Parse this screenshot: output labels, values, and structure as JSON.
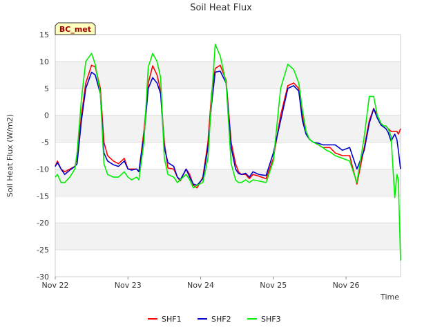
{
  "chart_data": {
    "type": "line",
    "title": "Soil Heat Flux",
    "xlabel": "Time",
    "ylabel": "Soil Heat Flux (W/m2)",
    "ylim": [
      -30,
      15
    ],
    "yticks": [
      15,
      10,
      5,
      0,
      -5,
      -10,
      -15,
      -20,
      -25,
      -30
    ],
    "xlim": [
      0,
      4.75
    ],
    "xticks": [
      {
        "value": 0,
        "label": "Nov 22"
      },
      {
        "value": 1,
        "label": "Nov 23"
      },
      {
        "value": 2,
        "label": "Nov 24"
      },
      {
        "value": 3,
        "label": "Nov 25"
      },
      {
        "value": 4,
        "label": "Nov 26"
      }
    ],
    "grid": "horizontal bands",
    "site_label": "BC_met",
    "legend_position": "bottom",
    "series": [
      {
        "name": "SHF1",
        "color": "#ff0000",
        "x": [
          0,
          0.03,
          0.08,
          0.13,
          0.2,
          0.27,
          0.3,
          0.36,
          0.42,
          0.5,
          0.55,
          0.62,
          0.67,
          0.72,
          0.8,
          0.87,
          0.95,
          1.0,
          1.05,
          1.12,
          1.15,
          1.22,
          1.28,
          1.34,
          1.4,
          1.45,
          1.5,
          1.55,
          1.63,
          1.68,
          1.72,
          1.8,
          1.85,
          1.9,
          1.95,
          2.03,
          2.1,
          2.15,
          2.2,
          2.27,
          2.35,
          2.42,
          2.48,
          2.52,
          2.56,
          2.62,
          2.67,
          2.72,
          2.8,
          2.9,
          3.0,
          3.1,
          3.2,
          3.28,
          3.35,
          3.4,
          3.45,
          3.5,
          3.55,
          3.62,
          3.68,
          3.73,
          3.78,
          3.85,
          3.95,
          4.05,
          4.15,
          4.25,
          4.32,
          4.38,
          4.43,
          4.48,
          4.52,
          4.55,
          4.58,
          4.62,
          4.67,
          4.7,
          4.72,
          4.75
        ],
        "y": [
          -9.5,
          -8.5,
          -10,
          -10.5,
          -10,
          -9.5,
          -8,
          0,
          6,
          9.3,
          9,
          5,
          -5,
          -7.5,
          -8.5,
          -9,
          -8,
          -10,
          -10,
          -10,
          -10.5,
          -3,
          6,
          9.2,
          7.5,
          4.5,
          -5,
          -9.8,
          -10,
          -11.5,
          -12.2,
          -10,
          -11,
          -13,
          -13.5,
          -11.5,
          -5,
          4,
          8.7,
          9.3,
          6.5,
          -5,
          -9,
          -10.5,
          -11,
          -11,
          -11.8,
          -11,
          -11.3,
          -11.8,
          -8,
          0,
          5.5,
          6,
          5,
          0,
          -3.5,
          -4.5,
          -5,
          -5.5,
          -6,
          -6,
          -6,
          -7,
          -7.5,
          -7.5,
          -12.8,
          -6,
          -1,
          1.3,
          0,
          -1.5,
          -2,
          -2,
          -2.5,
          -3,
          -3,
          -3,
          -3.5,
          -2.5
        ]
      },
      {
        "name": "SHF2",
        "color": "#0000cc",
        "x": [
          0,
          0.03,
          0.08,
          0.13,
          0.2,
          0.27,
          0.3,
          0.36,
          0.42,
          0.5,
          0.55,
          0.62,
          0.67,
          0.72,
          0.8,
          0.87,
          0.95,
          1.0,
          1.05,
          1.12,
          1.15,
          1.22,
          1.28,
          1.34,
          1.4,
          1.45,
          1.5,
          1.55,
          1.63,
          1.68,
          1.72,
          1.8,
          1.85,
          1.9,
          1.95,
          2.03,
          2.1,
          2.15,
          2.2,
          2.27,
          2.35,
          2.42,
          2.48,
          2.52,
          2.56,
          2.62,
          2.67,
          2.72,
          2.8,
          2.9,
          3.0,
          3.1,
          3.2,
          3.28,
          3.35,
          3.4,
          3.45,
          3.5,
          3.55,
          3.62,
          3.68,
          3.73,
          3.78,
          3.85,
          3.95,
          4.05,
          4.15,
          4.25,
          4.32,
          4.38,
          4.43,
          4.48,
          4.52,
          4.55,
          4.58,
          4.62,
          4.67,
          4.7,
          4.72,
          4.75
        ],
        "y": [
          -9.5,
          -8.8,
          -10,
          -11,
          -10.2,
          -9.5,
          -9,
          -1,
          5,
          8,
          7.5,
          4,
          -7,
          -8.5,
          -9.2,
          -9.5,
          -8.5,
          -10,
          -10.2,
          -10,
          -10.5,
          -4,
          5,
          7,
          6,
          4,
          -6,
          -8.8,
          -9.5,
          -11.5,
          -12,
          -10,
          -11.5,
          -12.8,
          -13,
          -11.8,
          -6,
          2,
          8,
          8.2,
          6,
          -6,
          -10,
          -10.8,
          -11,
          -10.8,
          -11.5,
          -10.5,
          -11,
          -11.2,
          -7,
          -1,
          5,
          5.5,
          4.5,
          -1,
          -3.5,
          -4.5,
          -5,
          -5.2,
          -5.5,
          -5.5,
          -5.5,
          -5.5,
          -6.5,
          -6,
          -10,
          -6.5,
          -1.5,
          1.2,
          -0.5,
          -1.8,
          -2.2,
          -2.5,
          -3.2,
          -4.8,
          -3.5,
          -4.5,
          -6.5,
          -10
        ]
      },
      {
        "name": "SHF3",
        "color": "#00ee00",
        "x": [
          0,
          0.03,
          0.08,
          0.13,
          0.2,
          0.27,
          0.3,
          0.36,
          0.42,
          0.5,
          0.55,
          0.62,
          0.67,
          0.72,
          0.8,
          0.87,
          0.95,
          1.0,
          1.05,
          1.12,
          1.15,
          1.22,
          1.28,
          1.34,
          1.4,
          1.45,
          1.5,
          1.55,
          1.63,
          1.68,
          1.72,
          1.8,
          1.85,
          1.9,
          1.95,
          2.03,
          2.1,
          2.15,
          2.2,
          2.27,
          2.35,
          2.42,
          2.48,
          2.52,
          2.56,
          2.62,
          2.67,
          2.72,
          2.8,
          2.9,
          3.0,
          3.1,
          3.2,
          3.28,
          3.35,
          3.4,
          3.45,
          3.5,
          3.55,
          3.62,
          3.68,
          3.73,
          3.78,
          3.85,
          3.95,
          4.05,
          4.15,
          4.25,
          4.32,
          4.38,
          4.43,
          4.48,
          4.52,
          4.55,
          4.58,
          4.62,
          4.67,
          4.7,
          4.72,
          4.75
        ],
        "y": [
          -11.5,
          -11,
          -12.5,
          -12.5,
          -11.5,
          -10,
          -7,
          3,
          10,
          11.5,
          9.5,
          4,
          -9,
          -11,
          -11.5,
          -11.5,
          -10.5,
          -11.5,
          -12,
          -11.5,
          -12,
          -5,
          9,
          11.5,
          10,
          7,
          -8,
          -11,
          -11.5,
          -12.5,
          -12,
          -11,
          -12,
          -13.5,
          -13,
          -12.5,
          -8,
          3,
          13.2,
          11,
          6,
          -9,
          -12,
          -12.5,
          -12.5,
          -12,
          -12.5,
          -12,
          -12.2,
          -12.5,
          -8.5,
          5,
          9.5,
          8.5,
          6,
          1,
          -3,
          -4.5,
          -5,
          -5.5,
          -6,
          -6.5,
          -6.8,
          -7.5,
          -8,
          -8.5,
          -12.5,
          -4,
          3.5,
          3.5,
          0,
          -1.5,
          -2,
          -2,
          -2.5,
          -4,
          -15.3,
          -11,
          -12,
          -27
        ]
      }
    ]
  }
}
